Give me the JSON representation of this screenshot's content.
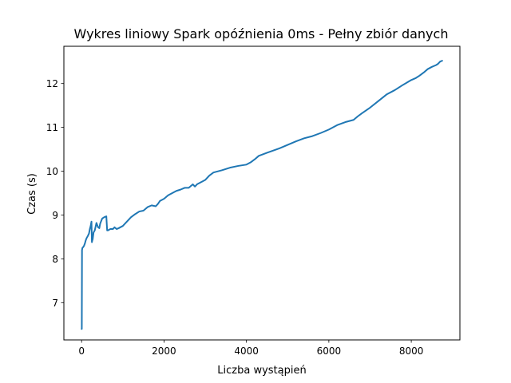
{
  "chart_data": {
    "type": "line",
    "title": "Wykres liniowy Spark opóźnienia 0ms - Pełny zbiór danych",
    "xlabel": "Liczba wystąpień",
    "ylabel": "Czas (s)",
    "xlim": [
      -430,
      9180
    ],
    "ylim": [
      6.15,
      12.85
    ],
    "xticks": [
      0,
      2000,
      4000,
      6000,
      8000
    ],
    "yticks": [
      7,
      8,
      9,
      10,
      11,
      12
    ],
    "grid": false,
    "series": [
      {
        "color": "#1f77b4",
        "x": [
          0,
          5,
          10,
          20,
          40,
          60,
          80,
          100,
          120,
          150,
          180,
          200,
          220,
          240,
          250,
          260,
          270,
          290,
          320,
          360,
          400,
          430,
          450,
          470,
          500,
          550,
          600,
          620,
          640,
          660,
          700,
          760,
          800,
          850,
          900,
          1000,
          1100,
          1200,
          1300,
          1400,
          1500,
          1600,
          1700,
          1800,
          1850,
          1900,
          2000,
          2100,
          2200,
          2300,
          2400,
          2500,
          2600,
          2700,
          2750,
          2800,
          2900,
          3000,
          3100,
          3200,
          3400,
          3600,
          3800,
          4000,
          4100,
          4200,
          4300,
          4500,
          4800,
          5000,
          5200,
          5400,
          5600,
          5800,
          6000,
          6200,
          6400,
          6600,
          6700,
          6800,
          7000,
          7200,
          7400,
          7600,
          7800,
          8000,
          8100,
          8200,
          8300,
          8400,
          8500,
          8600,
          8650,
          8700,
          8750
        ],
        "y": [
          6.4,
          6.4,
          8.2,
          8.25,
          8.27,
          8.3,
          8.35,
          8.42,
          8.47,
          8.52,
          8.58,
          8.68,
          8.75,
          8.85,
          8.38,
          8.42,
          8.45,
          8.6,
          8.65,
          8.82,
          8.72,
          8.7,
          8.8,
          8.85,
          8.92,
          8.95,
          8.97,
          8.65,
          8.65,
          8.66,
          8.68,
          8.68,
          8.72,
          8.68,
          8.7,
          8.75,
          8.85,
          8.95,
          9.02,
          9.08,
          9.1,
          9.18,
          9.22,
          9.2,
          9.25,
          9.32,
          9.37,
          9.45,
          9.5,
          9.55,
          9.58,
          9.62,
          9.62,
          9.7,
          9.65,
          9.7,
          9.75,
          9.8,
          9.9,
          9.97,
          10.02,
          10.08,
          10.12,
          10.15,
          10.2,
          10.27,
          10.35,
          10.42,
          10.52,
          10.6,
          10.68,
          10.75,
          10.8,
          10.87,
          10.95,
          11.05,
          11.12,
          11.17,
          11.25,
          11.32,
          11.45,
          11.6,
          11.75,
          11.85,
          11.97,
          12.08,
          12.12,
          12.18,
          12.25,
          12.33,
          12.38,
          12.42,
          12.45,
          12.5,
          12.52
        ]
      }
    ]
  }
}
